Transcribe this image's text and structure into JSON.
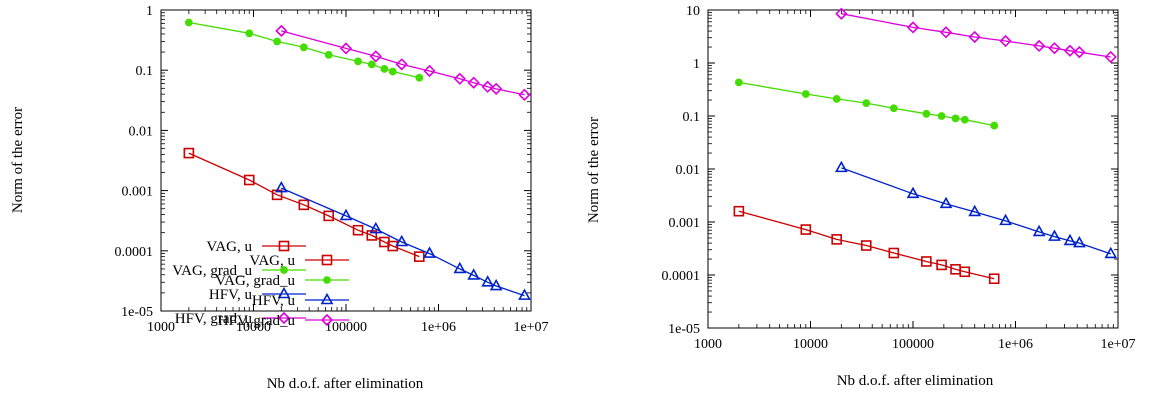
{
  "chart_data": [
    {
      "type": "line",
      "xlabel": "Nb d.o.f. after elimination",
      "ylabel": "Norm of the error",
      "xscale": "log",
      "yscale": "log",
      "xlim": [
        1000,
        10000000
      ],
      "ylim": [
        1e-05,
        1
      ],
      "x_ticks": [
        "1000",
        "10000",
        "100000",
        "1e+06",
        "1e+07"
      ],
      "y_ticks": [
        "1e-05",
        "0.0001",
        "0.001",
        "0.01",
        "0.1",
        "1"
      ],
      "legend": "bottom-left",
      "series": [
        {
          "name": "VAG, u",
          "color": "#cc0000",
          "marker": "square",
          "x": [
            2000,
            9000,
            18000,
            35000,
            65000,
            135000,
            190000,
            260000,
            320000,
            620000
          ],
          "y": [
            0.0042,
            0.0015,
            0.00085,
            0.00058,
            0.00038,
            0.00022,
            0.00018,
            0.00014,
            0.00012,
            8e-05
          ]
        },
        {
          "name": "VAG, grad_u",
          "color": "#44dd00",
          "marker": "circle",
          "x": [
            2000,
            9000,
            18000,
            35000,
            65000,
            135000,
            190000,
            260000,
            320000,
            620000
          ],
          "y": [
            0.62,
            0.41,
            0.3,
            0.24,
            0.18,
            0.14,
            0.125,
            0.105,
            0.095,
            0.075
          ]
        },
        {
          "name": "HFV, u",
          "color": "#0022cc",
          "marker": "triangle",
          "x": [
            20000,
            100000,
            210000,
            400000,
            800000,
            1700000,
            2400000,
            3400000,
            4200000,
            8500000
          ],
          "y": [
            0.0011,
            0.00038,
            0.00023,
            0.00014,
            9e-05,
            5e-05,
            3.9e-05,
            3e-05,
            2.6e-05,
            1.8e-05
          ]
        },
        {
          "name": "HFV, grad_u",
          "color": "#dd00dd",
          "marker": "diamond",
          "x": [
            20000,
            100000,
            210000,
            400000,
            800000,
            1700000,
            2400000,
            3400000,
            4200000,
            8500000
          ],
          "y": [
            0.45,
            0.23,
            0.17,
            0.125,
            0.097,
            0.072,
            0.062,
            0.053,
            0.049,
            0.039
          ]
        }
      ]
    },
    {
      "type": "line",
      "xlabel": "Nb d.o.f. after elimination",
      "ylabel": "Norm of the error",
      "xscale": "log",
      "yscale": "log",
      "xlim": [
        1000,
        10000000
      ],
      "ylim": [
        1e-05,
        10
      ],
      "x_ticks": [
        "1000",
        "10000",
        "100000",
        "1e+06",
        "1e+07"
      ],
      "y_ticks": [
        "1e-05",
        "0.0001",
        "0.001",
        "0.01",
        "0.1",
        "1",
        "10"
      ],
      "legend": "bottom-left",
      "series": [
        {
          "name": "VAG, u",
          "color": "#cc0000",
          "marker": "square",
          "x": [
            2000,
            9000,
            18000,
            35000,
            65000,
            135000,
            190000,
            260000,
            320000,
            620000
          ],
          "y": [
            0.0016,
            0.00072,
            0.00047,
            0.00036,
            0.00026,
            0.00018,
            0.000155,
            0.000128,
            0.000115,
            8.5e-05
          ]
        },
        {
          "name": "VAG, grad_u",
          "color": "#44dd00",
          "marker": "circle",
          "x": [
            2000,
            9000,
            18000,
            35000,
            65000,
            135000,
            190000,
            260000,
            320000,
            620000
          ],
          "y": [
            0.43,
            0.26,
            0.21,
            0.175,
            0.14,
            0.11,
            0.1,
            0.09,
            0.085,
            0.066
          ]
        },
        {
          "name": "HFV, u",
          "color": "#0022cc",
          "marker": "triangle",
          "x": [
            20000,
            100000,
            210000,
            400000,
            800000,
            1700000,
            2400000,
            3400000,
            4200000,
            8500000
          ],
          "y": [
            0.0105,
            0.0034,
            0.0022,
            0.00155,
            0.00105,
            0.00065,
            0.00053,
            0.00044,
            0.0004,
            0.00025
          ]
        },
        {
          "name": "HFV, grad_u",
          "color": "#dd00dd",
          "marker": "diamond",
          "x": [
            20000,
            100000,
            210000,
            400000,
            800000,
            1700000,
            2400000,
            3400000,
            4200000,
            8500000
          ],
          "y": [
            8.5,
            4.7,
            3.8,
            3.1,
            2.6,
            2.1,
            1.9,
            1.7,
            1.6,
            1.3
          ]
        }
      ]
    }
  ]
}
